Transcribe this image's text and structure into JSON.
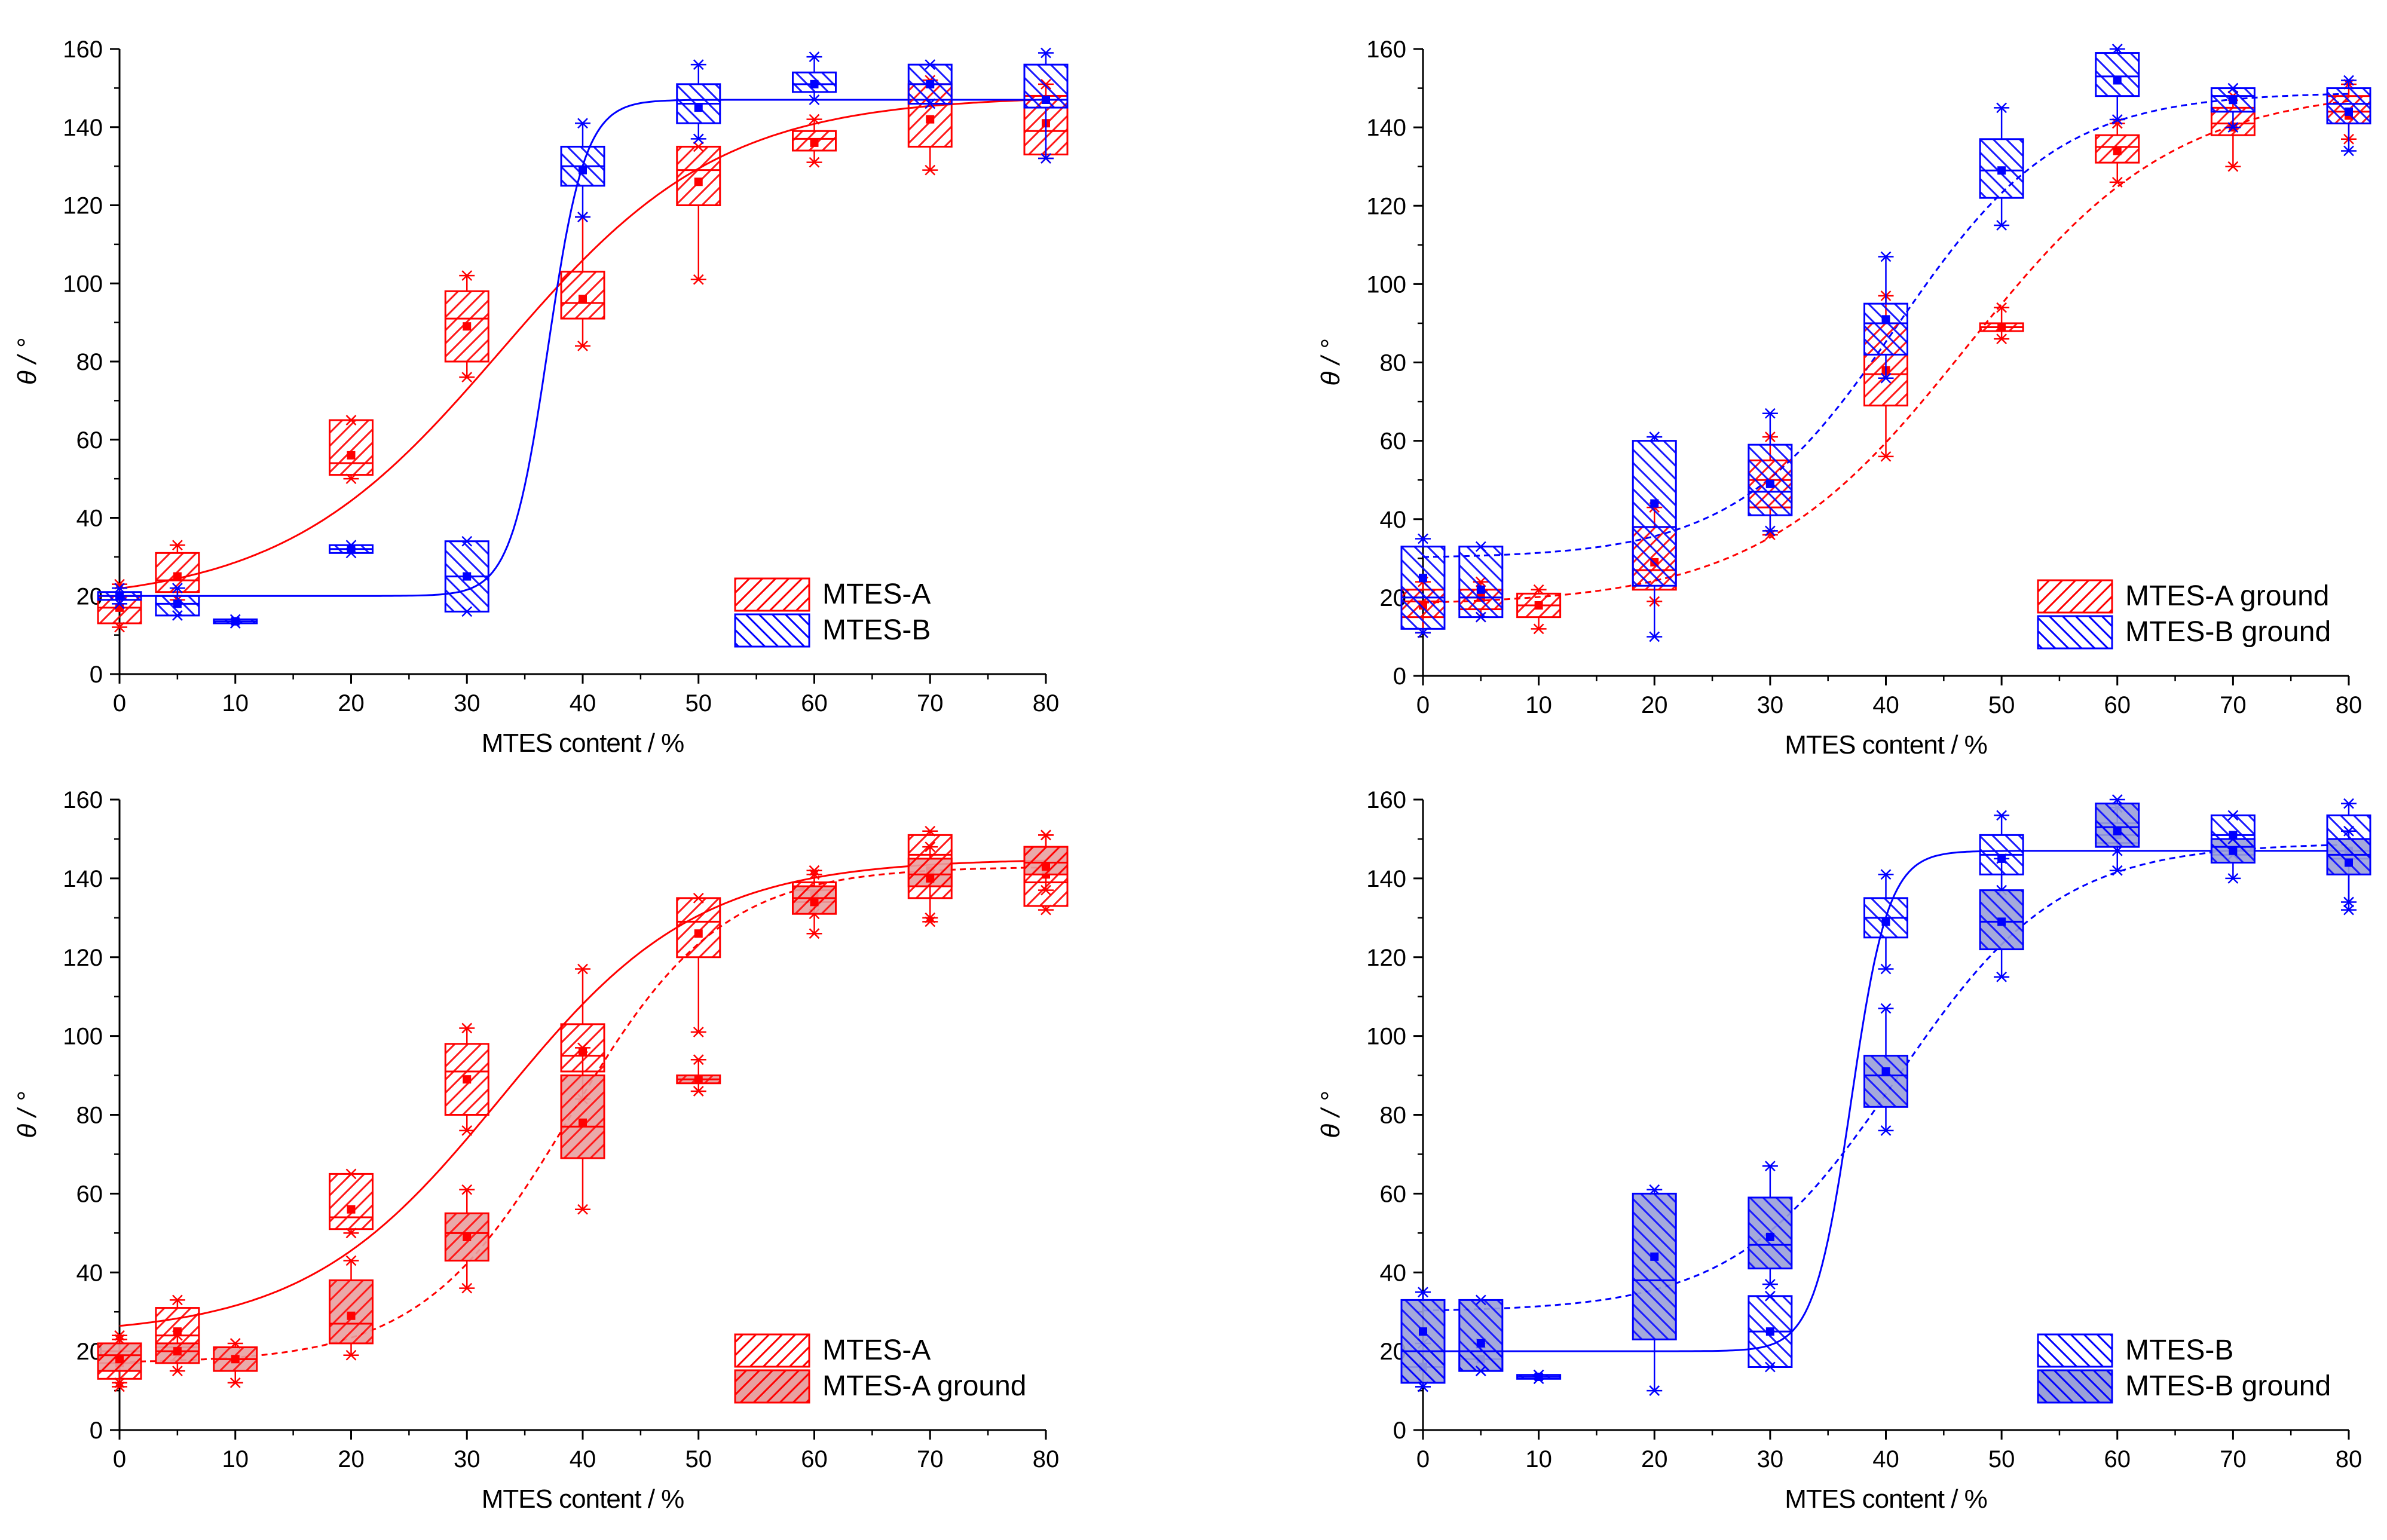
{
  "colors": {
    "red": "#ff0000",
    "blue": "#0000ff",
    "axis": "#000000"
  },
  "chart_data": [
    {
      "type": "box",
      "xlabel": "MTES content / %",
      "ylabel": "θ / °",
      "xlim": [
        0,
        80
      ],
      "ylim": [
        0,
        160
      ],
      "xticks": [
        0,
        10,
        20,
        30,
        40,
        50,
        60,
        70,
        80
      ],
      "yticks": [
        0,
        20,
        40,
        60,
        80,
        100,
        120,
        140,
        160
      ],
      "legend_position": "bottom-right",
      "series": [
        {
          "name": "MTES-A",
          "color": "red",
          "hatch": "fwd",
          "filled": false,
          "fit": "solid",
          "fit_params": {
            "base": 18,
            "top": 148,
            "x0": 33,
            "k": 9.5
          },
          "boxes": [
            {
              "x": 0,
              "q1": 13,
              "med": 17,
              "q3": 20,
              "min": 12,
              "max": 23,
              "mean": 17
            },
            {
              "x": 5,
              "q1": 21,
              "med": 24,
              "q3": 31,
              "min": 19,
              "max": 33,
              "mean": 25
            },
            {
              "x": 20,
              "q1": 51,
              "med": 54,
              "q3": 65,
              "min": 50,
              "max": 65,
              "mean": 56
            },
            {
              "x": 30,
              "q1": 80,
              "med": 91,
              "q3": 98,
              "min": 76,
              "max": 102,
              "mean": 89
            },
            {
              "x": 40,
              "q1": 91,
              "med": 95,
              "q3": 103,
              "min": 84,
              "max": 117,
              "mean": 96
            },
            {
              "x": 50,
              "q1": 120,
              "med": 129,
              "q3": 135,
              "min": 101,
              "max": 135,
              "mean": 126
            },
            {
              "x": 60,
              "q1": 134,
              "med": 137,
              "q3": 139,
              "min": 131,
              "max": 142,
              "mean": 136
            },
            {
              "x": 70,
              "q1": 135,
              "med": 146,
              "q3": 151,
              "min": 129,
              "max": 152,
              "mean": 142
            },
            {
              "x": 80,
              "q1": 133,
              "med": 139,
              "q3": 148,
              "min": 132,
              "max": 151,
              "mean": 141
            }
          ]
        },
        {
          "name": "MTES-B",
          "color": "blue",
          "hatch": "back",
          "filled": false,
          "fit": "solid",
          "fit_params": {
            "base": 20,
            "top": 147,
            "x0": 37,
            "k": 1.6
          },
          "boxes": [
            {
              "x": 0,
              "q1": 19,
              "med": 20,
              "q3": 21,
              "min": 18,
              "max": 22,
              "mean": 20
            },
            {
              "x": 5,
              "q1": 15,
              "med": 18,
              "q3": 20,
              "min": 15,
              "max": 22,
              "mean": 18
            },
            {
              "x": 10,
              "q1": 13,
              "med": 13.5,
              "q3": 14,
              "min": 13,
              "max": 14,
              "mean": 13.5
            },
            {
              "x": 20,
              "q1": 31,
              "med": 32,
              "q3": 33,
              "min": 31,
              "max": 33,
              "mean": 32
            },
            {
              "x": 30,
              "q1": 16,
              "med": 25,
              "q3": 34,
              "min": 16,
              "max": 34,
              "mean": 25
            },
            {
              "x": 40,
              "q1": 125,
              "med": 130,
              "q3": 135,
              "min": 117,
              "max": 141,
              "mean": 129
            },
            {
              "x": 50,
              "q1": 141,
              "med": 146,
              "q3": 151,
              "min": 137,
              "max": 156,
              "mean": 145
            },
            {
              "x": 60,
              "q1": 149,
              "med": 151,
              "q3": 154,
              "min": 147,
              "max": 158,
              "mean": 151
            },
            {
              "x": 70,
              "q1": 146,
              "med": 151,
              "q3": 156,
              "min": 146,
              "max": 156,
              "mean": 151
            },
            {
              "x": 80,
              "q1": 145,
              "med": 147,
              "q3": 156,
              "min": 132,
              "max": 159,
              "mean": 147
            }
          ]
        }
      ]
    },
    {
      "type": "box",
      "xlabel": "MTES content / %",
      "ylabel": "θ / °",
      "xlim": [
        0,
        80
      ],
      "ylim": [
        0,
        160
      ],
      "xticks": [
        0,
        10,
        20,
        30,
        40,
        50,
        60,
        70,
        80
      ],
      "yticks": [
        0,
        20,
        40,
        60,
        80,
        100,
        120,
        140,
        160
      ],
      "legend_position": "bottom-right",
      "series": [
        {
          "name": "MTES-A ground",
          "color": "red",
          "hatch": "fwd",
          "filled": false,
          "fit": "dashed",
          "fit_params": {
            "base": 18,
            "top": 150,
            "x0": 47,
            "k": 9
          },
          "boxes": [
            {
              "x": 0,
              "q1": 15,
              "med": 19,
              "q3": 22,
              "min": 11,
              "max": 24,
              "mean": 18
            },
            {
              "x": 5,
              "q1": 17,
              "med": 20,
              "q3": 22,
              "min": 15,
              "max": 24,
              "mean": 20
            },
            {
              "x": 10,
              "q1": 15,
              "med": 18,
              "q3": 21,
              "min": 12,
              "max": 22,
              "mean": 18
            },
            {
              "x": 20,
              "q1": 22,
              "med": 27,
              "q3": 38,
              "min": 19,
              "max": 43,
              "mean": 29
            },
            {
              "x": 30,
              "q1": 43,
              "med": 50,
              "q3": 55,
              "min": 36,
              "max": 61,
              "mean": 49
            },
            {
              "x": 40,
              "q1": 69,
              "med": 77,
              "q3": 90,
              "min": 56,
              "max": 97,
              "mean": 78
            },
            {
              "x": 50,
              "q1": 88,
              "med": 89,
              "q3": 90,
              "min": 86,
              "max": 94,
              "mean": 89
            },
            {
              "x": 60,
              "q1": 131,
              "med": 135,
              "q3": 138,
              "min": 126,
              "max": 141,
              "mean": 134
            },
            {
              "x": 70,
              "q1": 138,
              "med": 141,
              "q3": 145,
              "min": 130,
              "max": 148,
              "mean": 140
            },
            {
              "x": 80,
              "q1": 141,
              "med": 144,
              "q3": 148,
              "min": 137,
              "max": 151,
              "mean": 143
            }
          ]
        },
        {
          "name": "MTES-B ground",
          "color": "blue",
          "hatch": "back",
          "filled": false,
          "fit": "dashed",
          "fit_params": {
            "base": 30,
            "top": 149,
            "x0": 41,
            "k": 7
          },
          "boxes": [
            {
              "x": 0,
              "q1": 12,
              "med": 20,
              "q3": 33,
              "min": 11,
              "max": 35,
              "mean": 25
            },
            {
              "x": 5,
              "q1": 15,
              "med": 20,
              "q3": 33,
              "min": 15,
              "max": 33,
              "mean": 22
            },
            {
              "x": 20,
              "q1": 23,
              "med": 38,
              "q3": 60,
              "min": 10,
              "max": 61,
              "mean": 44
            },
            {
              "x": 30,
              "q1": 41,
              "med": 47,
              "q3": 59,
              "min": 37,
              "max": 67,
              "mean": 49
            },
            {
              "x": 40,
              "q1": 82,
              "med": 90,
              "q3": 95,
              "min": 76,
              "max": 107,
              "mean": 91
            },
            {
              "x": 50,
              "q1": 122,
              "med": 129,
              "q3": 137,
              "min": 115,
              "max": 145,
              "mean": 129
            },
            {
              "x": 60,
              "q1": 148,
              "med": 153,
              "q3": 159,
              "min": 142,
              "max": 160,
              "mean": 152
            },
            {
              "x": 70,
              "q1": 144,
              "med": 148,
              "q3": 150,
              "min": 140,
              "max": 150,
              "mean": 147
            },
            {
              "x": 80,
              "q1": 141,
              "med": 146,
              "q3": 150,
              "min": 134,
              "max": 152,
              "mean": 144
            }
          ]
        }
      ]
    },
    {
      "type": "box",
      "xlabel": "MTES content / %",
      "ylabel": "θ / °",
      "xlim": [
        0,
        80
      ],
      "ylim": [
        0,
        160
      ],
      "xticks": [
        0,
        10,
        20,
        30,
        40,
        50,
        60,
        70,
        80
      ],
      "yticks": [
        0,
        20,
        40,
        60,
        80,
        100,
        120,
        140,
        160
      ],
      "legend_position": "bottom-right",
      "series": [
        {
          "name": "MTES-A",
          "color": "red",
          "hatch": "fwd",
          "filled": false,
          "fit": "solid",
          "fit_params": {
            "base": 24,
            "top": 145,
            "x0": 33,
            "k": 8.5
          },
          "boxes": [
            {
              "x": 0,
              "q1": 13,
              "med": 17,
              "q3": 20,
              "min": 12,
              "max": 23,
              "mean": 17
            },
            {
              "x": 5,
              "q1": 21,
              "med": 24,
              "q3": 31,
              "min": 19,
              "max": 33,
              "mean": 25
            },
            {
              "x": 20,
              "q1": 51,
              "med": 54,
              "q3": 65,
              "min": 50,
              "max": 65,
              "mean": 56
            },
            {
              "x": 30,
              "q1": 80,
              "med": 91,
              "q3": 98,
              "min": 76,
              "max": 102,
              "mean": 89
            },
            {
              "x": 40,
              "q1": 91,
              "med": 95,
              "q3": 103,
              "min": 84,
              "max": 117,
              "mean": 96
            },
            {
              "x": 50,
              "q1": 120,
              "med": 129,
              "q3": 135,
              "min": 101,
              "max": 135,
              "mean": 126
            },
            {
              "x": 60,
              "q1": 134,
              "med": 137,
              "q3": 139,
              "min": 131,
              "max": 142,
              "mean": 136
            },
            {
              "x": 70,
              "q1": 135,
              "med": 146,
              "q3": 151,
              "min": 129,
              "max": 152,
              "mean": 142
            },
            {
              "x": 80,
              "q1": 133,
              "med": 139,
              "q3": 148,
              "min": 132,
              "max": 151,
              "mean": 141
            }
          ]
        },
        {
          "name": "MTES-A ground",
          "color": "red",
          "hatch": "fwd",
          "filled": true,
          "fit": "dashed",
          "fit_params": {
            "base": 17,
            "top": 143,
            "x0": 39,
            "k": 6.5
          },
          "boxes": [
            {
              "x": 0,
              "q1": 15,
              "med": 19,
              "q3": 22,
              "min": 11,
              "max": 24,
              "mean": 18
            },
            {
              "x": 5,
              "q1": 17,
              "med": 20,
              "q3": 22,
              "min": 15,
              "max": 24,
              "mean": 20
            },
            {
              "x": 10,
              "q1": 15,
              "med": 18,
              "q3": 21,
              "min": 12,
              "max": 22,
              "mean": 18
            },
            {
              "x": 20,
              "q1": 22,
              "med": 27,
              "q3": 38,
              "min": 19,
              "max": 43,
              "mean": 29
            },
            {
              "x": 30,
              "q1": 43,
              "med": 50,
              "q3": 55,
              "min": 36,
              "max": 61,
              "mean": 49
            },
            {
              "x": 40,
              "q1": 69,
              "med": 77,
              "q3": 90,
              "min": 56,
              "max": 97,
              "mean": 78
            },
            {
              "x": 50,
              "q1": 88,
              "med": 89,
              "q3": 90,
              "min": 86,
              "max": 94,
              "mean": 89
            },
            {
              "x": 60,
              "q1": 131,
              "med": 135,
              "q3": 138,
              "min": 126,
              "max": 141,
              "mean": 134
            },
            {
              "x": 70,
              "q1": 138,
              "med": 141,
              "q3": 145,
              "min": 130,
              "max": 148,
              "mean": 140
            },
            {
              "x": 80,
              "q1": 141,
              "med": 144,
              "q3": 148,
              "min": 137,
              "max": 151,
              "mean": 143
            }
          ]
        }
      ]
    },
    {
      "type": "box",
      "xlabel": "MTES content / %",
      "ylabel": "θ / °",
      "xlim": [
        0,
        80
      ],
      "ylim": [
        0,
        160
      ],
      "xticks": [
        0,
        10,
        20,
        30,
        40,
        50,
        60,
        70,
        80
      ],
      "yticks": [
        0,
        20,
        40,
        60,
        80,
        100,
        120,
        140,
        160
      ],
      "legend_position": "bottom-right",
      "series": [
        {
          "name": "MTES-B",
          "color": "blue",
          "hatch": "back",
          "filled": false,
          "fit": "solid",
          "fit_params": {
            "base": 20,
            "top": 147,
            "x0": 37,
            "k": 1.6
          },
          "boxes": [
            {
              "x": 0,
              "q1": 12,
              "med": 16,
              "q3": 20,
              "min": 11,
              "max": 22,
              "mean": 16
            },
            {
              "x": 5,
              "q1": 15,
              "med": 18,
              "q3": 20,
              "min": 15,
              "max": 22,
              "mean": 18
            },
            {
              "x": 10,
              "q1": 13,
              "med": 13.5,
              "q3": 14,
              "min": 13,
              "max": 14,
              "mean": 13.5
            },
            {
              "x": 30,
              "q1": 16,
              "med": 25,
              "q3": 34,
              "min": 16,
              "max": 34,
              "mean": 25
            },
            {
              "x": 40,
              "q1": 125,
              "med": 130,
              "q3": 135,
              "min": 117,
              "max": 141,
              "mean": 129
            },
            {
              "x": 50,
              "q1": 141,
              "med": 146,
              "q3": 151,
              "min": 137,
              "max": 156,
              "mean": 145
            },
            {
              "x": 60,
              "q1": 149,
              "med": 151,
              "q3": 154,
              "min": 147,
              "max": 158,
              "mean": 151
            },
            {
              "x": 70,
              "q1": 146,
              "med": 151,
              "q3": 156,
              "min": 146,
              "max": 156,
              "mean": 151
            },
            {
              "x": 80,
              "q1": 145,
              "med": 147,
              "q3": 156,
              "min": 132,
              "max": 159,
              "mean": 147
            }
          ]
        },
        {
          "name": "MTES-B ground",
          "color": "blue",
          "hatch": "back",
          "filled": true,
          "fit": "dashed",
          "fit_params": {
            "base": 30,
            "top": 149,
            "x0": 41,
            "k": 7
          },
          "boxes": [
            {
              "x": 0,
              "q1": 12,
              "med": 20,
              "q3": 33,
              "min": 11,
              "max": 35,
              "mean": 25
            },
            {
              "x": 5,
              "q1": 15,
              "med": 20,
              "q3": 33,
              "min": 15,
              "max": 33,
              "mean": 22
            },
            {
              "x": 20,
              "q1": 23,
              "med": 38,
              "q3": 60,
              "min": 10,
              "max": 61,
              "mean": 44
            },
            {
              "x": 30,
              "q1": 41,
              "med": 47,
              "q3": 59,
              "min": 37,
              "max": 67,
              "mean": 49
            },
            {
              "x": 40,
              "q1": 82,
              "med": 90,
              "q3": 95,
              "min": 76,
              "max": 107,
              "mean": 91
            },
            {
              "x": 50,
              "q1": 122,
              "med": 129,
              "q3": 137,
              "min": 115,
              "max": 145,
              "mean": 129
            },
            {
              "x": 60,
              "q1": 148,
              "med": 153,
              "q3": 159,
              "min": 142,
              "max": 160,
              "mean": 152
            },
            {
              "x": 70,
              "q1": 144,
              "med": 148,
              "q3": 150,
              "min": 140,
              "max": 150,
              "mean": 147
            },
            {
              "x": 80,
              "q1": 141,
              "med": 146,
              "q3": 150,
              "min": 134,
              "max": 152,
              "mean": 144
            }
          ]
        }
      ]
    }
  ]
}
